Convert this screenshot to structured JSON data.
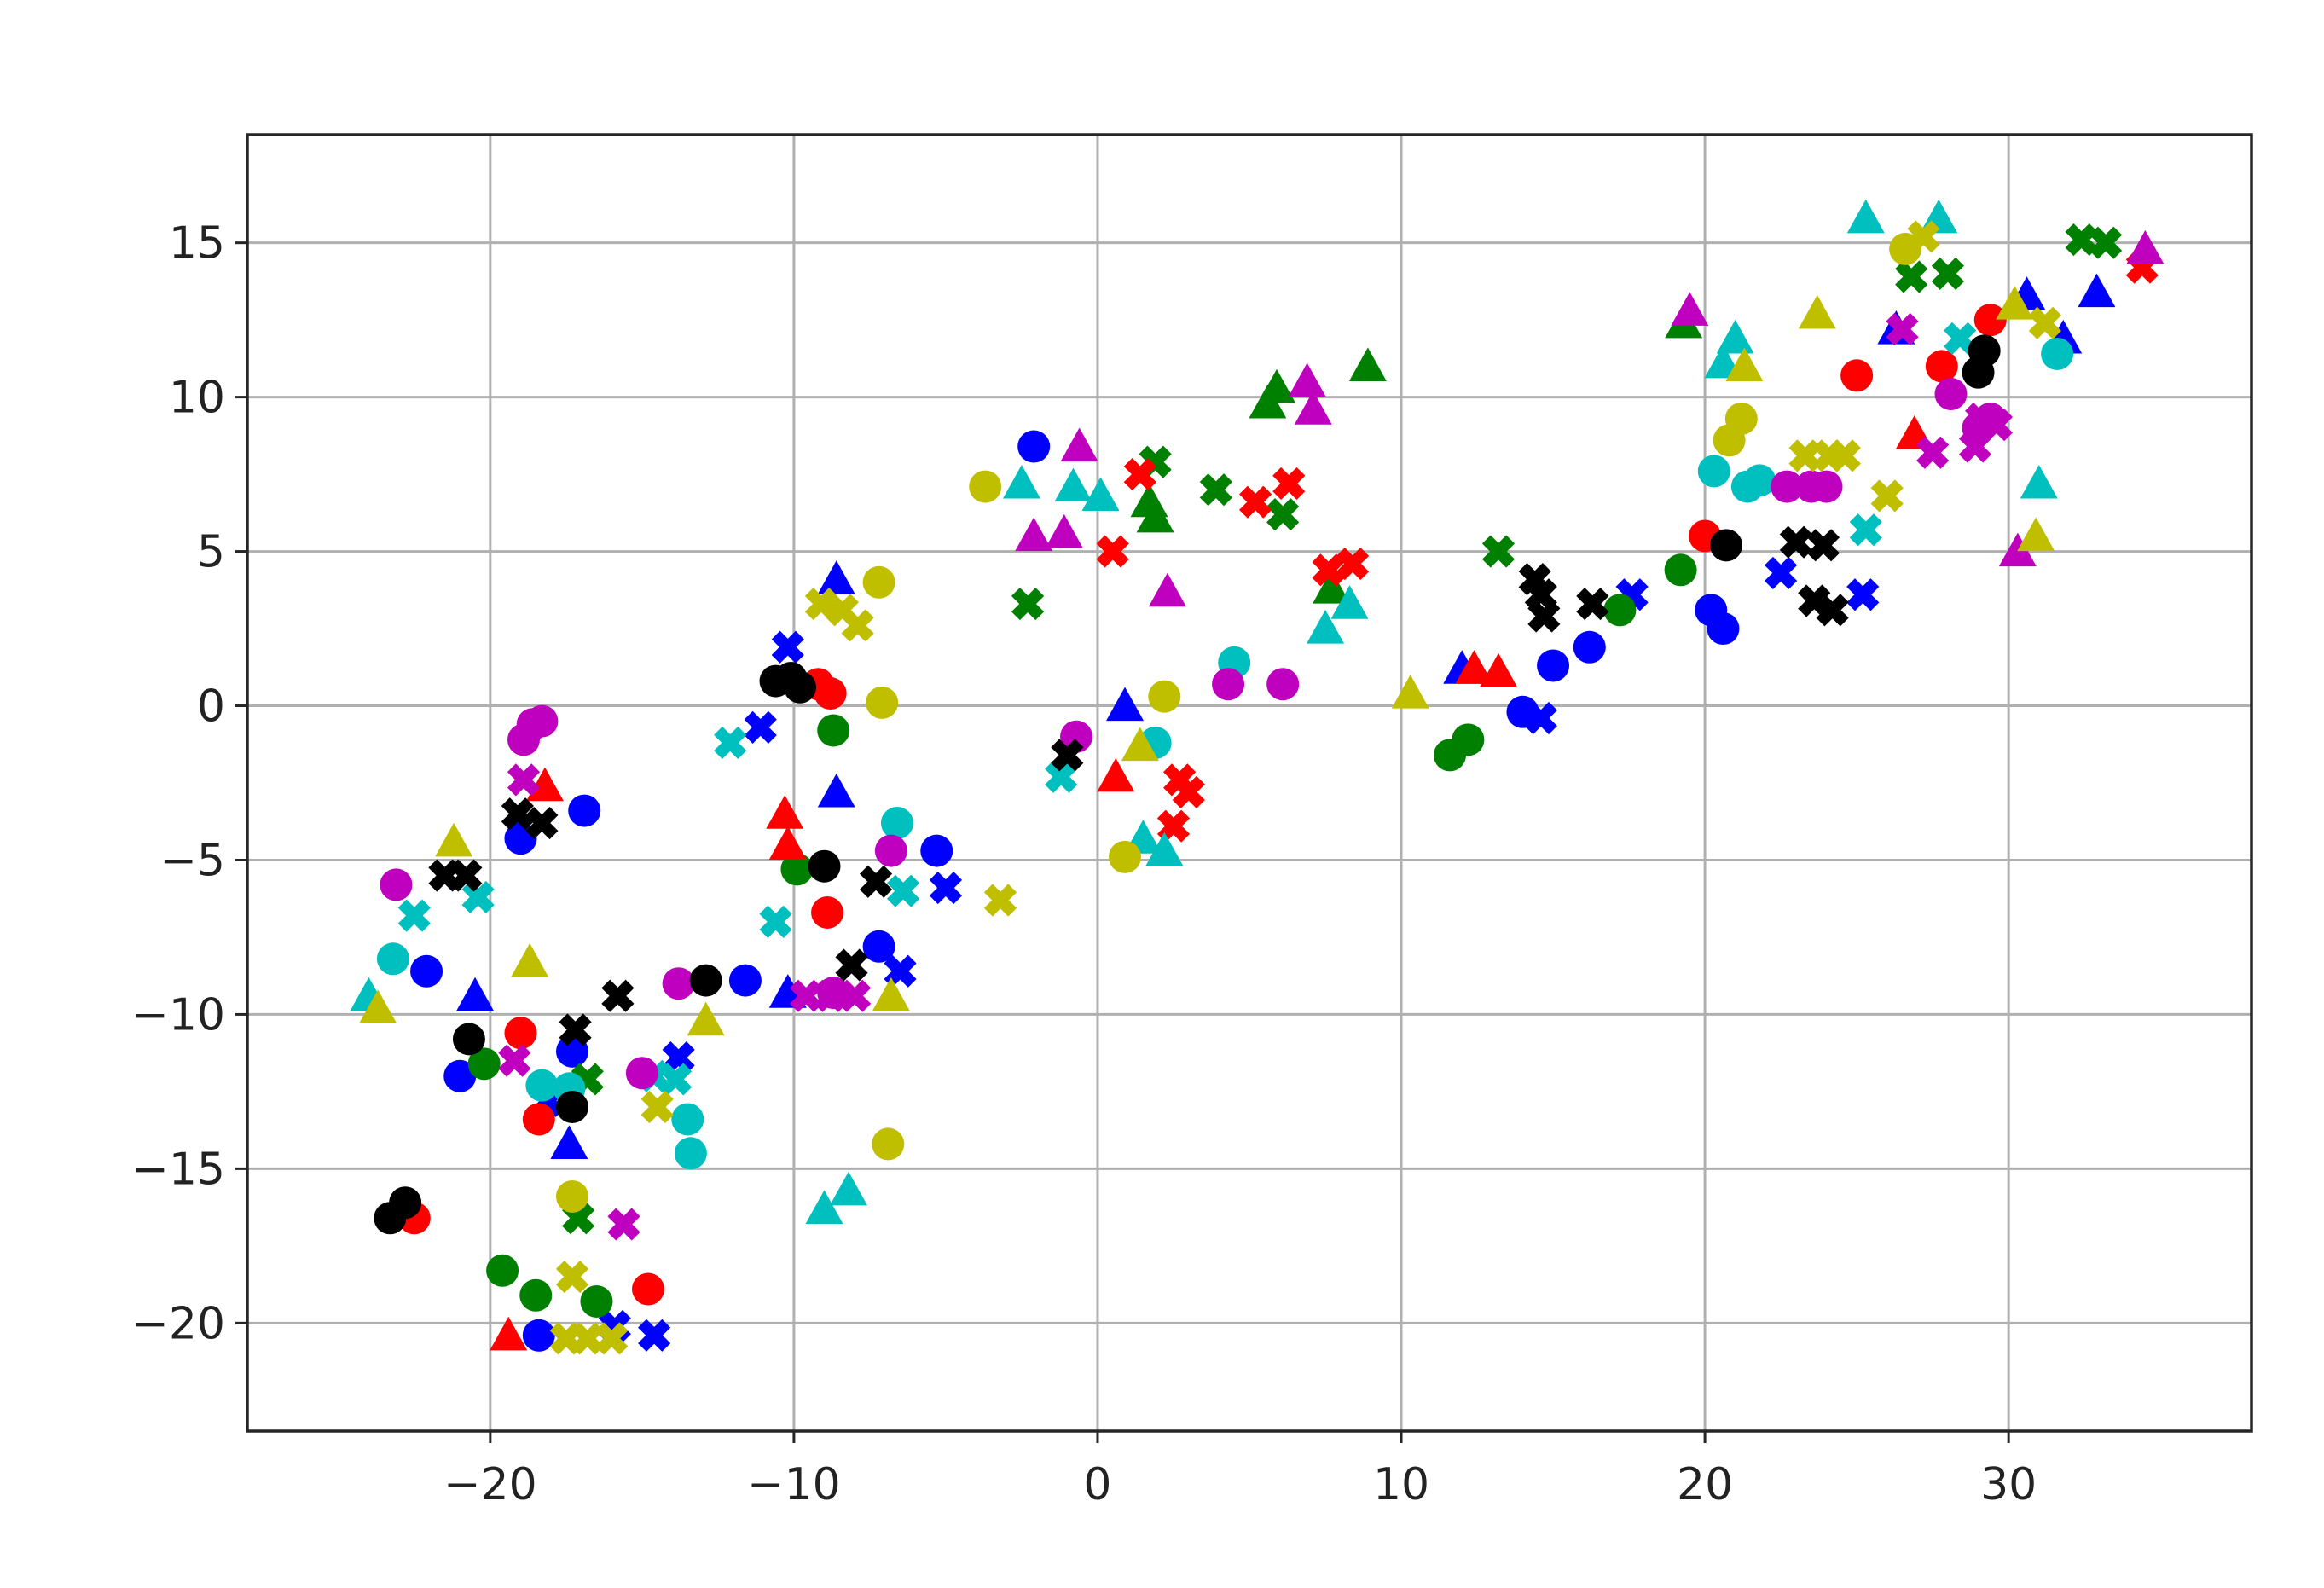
{
  "chart_data": {
    "type": "scatter",
    "title": "",
    "xlabel": "",
    "ylabel": "",
    "xlim": [
      -28,
      38
    ],
    "ylim": [
      -23.5,
      18.5
    ],
    "grid": true,
    "legend": "none",
    "xticks": [
      -20,
      -10,
      0,
      10,
      20,
      30
    ],
    "yticks": [
      15,
      10,
      5,
      0,
      -5,
      -10,
      -15,
      -20
    ],
    "xtick_labels": [
      "−20",
      "−10",
      "0",
      "10",
      "20",
      "30"
    ],
    "ytick_labels": [
      "15",
      "10",
      "5",
      "0",
      "−5",
      "−10",
      "−15",
      "−20"
    ],
    "colors": {
      "b": "#0000ff",
      "g": "#008000",
      "r": "#ff0000",
      "c": "#00bfbf",
      "m": "#bf00bf",
      "y": "#bfbf00",
      "k": "#000000",
      "grid": "#b0b0b0",
      "axes": "#262626"
    },
    "markers": {
      "circle": "o",
      "triangle": "^",
      "cross": "X"
    },
    "series": [
      {
        "color": "b",
        "circles": [
          [
            -2.1,
            8.4
          ],
          [
            -19,
            -4.3
          ],
          [
            -16.9,
            -3.4
          ],
          [
            -22.1,
            -8.6
          ],
          [
            -21,
            -12
          ],
          [
            -17.3,
            -11.2
          ],
          [
            -11.6,
            -8.9
          ],
          [
            -7.2,
            -7.8
          ],
          [
            -5.3,
            -4.7
          ],
          [
            14,
            -0.2
          ],
          [
            15,
            1.3
          ],
          [
            16.2,
            1.9
          ],
          [
            20.2,
            3.1
          ],
          [
            20.6,
            2.5
          ],
          [
            -18.4,
            -20.4
          ]
        ],
        "triangles": [
          [
            -8.6,
            4.1
          ],
          [
            -8.6,
            -2.8
          ],
          [
            -20.5,
            -9.4
          ],
          [
            -10.2,
            -9.3
          ],
          [
            -17.4,
            -14.2
          ],
          [
            0.9,
            0
          ],
          [
            12,
            1.2
          ],
          [
            26.3,
            12.2
          ],
          [
            30.6,
            13.3
          ],
          [
            32.9,
            13.4
          ],
          [
            31.8,
            11.9
          ]
        ],
        "crosses": [
          [
            -10.2,
            1.9
          ],
          [
            -11.1,
            -0.7
          ],
          [
            -18.1,
            -12.8
          ],
          [
            -13.8,
            -11.4
          ],
          [
            -6.5,
            -8.6
          ],
          [
            -5,
            -5.9
          ],
          [
            -15.9,
            -20.1
          ],
          [
            -14.6,
            -20.4
          ],
          [
            14.6,
            -0.4
          ],
          [
            17.6,
            3.6
          ],
          [
            22.5,
            4.3
          ],
          [
            25.2,
            3.6
          ]
        ]
      },
      {
        "color": "g",
        "circles": [
          [
            -8.7,
            -0.8
          ],
          [
            -9.9,
            -5.3
          ],
          [
            -20.2,
            -11.6
          ],
          [
            -19.6,
            -18.3
          ],
          [
            -18.5,
            -19.1
          ],
          [
            -16.5,
            -19.3
          ],
          [
            11.6,
            -1.6
          ],
          [
            12.2,
            -1.1
          ],
          [
            19.2,
            4.4
          ],
          [
            17.2,
            3.1
          ]
        ],
        "triangles": [
          [
            5.9,
            10.3
          ],
          [
            5.6,
            9.8
          ],
          [
            8.9,
            11
          ],
          [
            1.9,
            6.1
          ],
          [
            1.7,
            6.6
          ],
          [
            7.7,
            3.8
          ],
          [
            19.3,
            12.4
          ]
        ],
        "crosses": [
          [
            -17.1,
            -16.6
          ],
          [
            -16.8,
            -12.1
          ],
          [
            -2.3,
            3.3
          ],
          [
            1.9,
            7.9
          ],
          [
            3.9,
            7
          ],
          [
            6.1,
            6.2
          ],
          [
            13.2,
            5
          ],
          [
            26.8,
            13.9
          ],
          [
            28,
            14
          ],
          [
            32.4,
            15.1
          ],
          [
            33.2,
            15
          ]
        ]
      },
      {
        "color": "r",
        "circles": [
          [
            -9.2,
            0.7
          ],
          [
            -8.8,
            0.4
          ],
          [
            -8.9,
            -6.7
          ],
          [
            -19,
            -10.6
          ],
          [
            -18.4,
            -13.4
          ],
          [
            -22.5,
            -16.6
          ],
          [
            -14.8,
            -18.9
          ],
          [
            20,
            5.5
          ],
          [
            25,
            10.7
          ],
          [
            27.8,
            11
          ],
          [
            29.4,
            12.5
          ]
        ],
        "triangles": [
          [
            -10.3,
            -3.5
          ],
          [
            -10.2,
            -4.5
          ],
          [
            -18.2,
            -2.6
          ],
          [
            0.6,
            -2.3
          ],
          [
            12.4,
            1.2
          ],
          [
            13.2,
            1.1
          ],
          [
            26.9,
            8.8
          ],
          [
            -19.4,
            -20.4
          ]
        ],
        "crosses": [
          [
            0.5,
            5
          ],
          [
            1.4,
            7.5
          ],
          [
            5.2,
            6.6
          ],
          [
            6.3,
            7.2
          ],
          [
            7.6,
            4.4
          ],
          [
            8.4,
            4.6
          ],
          [
            2.7,
            -2.4
          ],
          [
            3,
            -2.8
          ],
          [
            2.5,
            -3.9
          ],
          [
            34.4,
            14.2
          ]
        ]
      },
      {
        "color": "c",
        "circles": [
          [
            -23.2,
            -8.2
          ],
          [
            -13.5,
            -13.4
          ],
          [
            -13.4,
            -14.5
          ],
          [
            -17.4,
            -12.4
          ],
          [
            -18.3,
            -12.3
          ],
          [
            -6.6,
            -3.8
          ],
          [
            1.9,
            -1.2
          ],
          [
            4.5,
            1.4
          ],
          [
            20.3,
            7.6
          ],
          [
            21.4,
            7.1
          ],
          [
            21.8,
            7.3
          ],
          [
            31.6,
            11.4
          ]
        ],
        "triangles": [
          [
            -24,
            -9.4
          ],
          [
            -9,
            -16.3
          ],
          [
            -8.2,
            -15.7
          ],
          [
            -2.5,
            7.2
          ],
          [
            -0.8,
            7.1
          ],
          [
            0.1,
            6.8
          ],
          [
            1.5,
            -4.3
          ],
          [
            2.2,
            -4.7
          ],
          [
            7.5,
            2.5
          ],
          [
            8.3,
            3.3
          ],
          [
            20.6,
            11.1
          ],
          [
            21,
            11.9
          ],
          [
            25.3,
            15.8
          ],
          [
            27.7,
            15.8
          ],
          [
            31,
            7.2
          ]
        ],
        "crosses": [
          [
            -22.5,
            -6.8
          ],
          [
            -20.4,
            -6.2
          ],
          [
            -14.6,
            -12
          ],
          [
            -13.9,
            -12.1
          ],
          [
            -12.1,
            -1.2
          ],
          [
            -10.6,
            -7
          ],
          [
            -6.4,
            -6
          ],
          [
            -1.2,
            -2.3
          ],
          [
            25.3,
            5.7
          ],
          [
            28.4,
            11.9
          ]
        ]
      },
      {
        "color": "m",
        "circles": [
          [
            -18.6,
            -0.6
          ],
          [
            -18.3,
            -0.5
          ],
          [
            -18.9,
            -1.1
          ],
          [
            -23.1,
            -5.8
          ],
          [
            -6.8,
            -4.7
          ],
          [
            -13.8,
            -9
          ],
          [
            -8.7,
            -9.3
          ],
          [
            -15,
            -11.9
          ],
          [
            -0.7,
            -1
          ],
          [
            4.3,
            0.7
          ],
          [
            6.1,
            0.7
          ],
          [
            22.7,
            7.1
          ],
          [
            23.5,
            7.1
          ],
          [
            24,
            7.1
          ],
          [
            28.1,
            10.1
          ],
          [
            29,
            9
          ],
          [
            29.4,
            9.3
          ]
        ],
        "triangles": [
          [
            -2.1,
            5.5
          ],
          [
            -1.1,
            5.6
          ],
          [
            -0.6,
            8.4
          ],
          [
            2.3,
            3.7
          ],
          [
            6.9,
            10.5
          ],
          [
            7.1,
            9.6
          ],
          [
            19.5,
            12.8
          ],
          [
            30.3,
            5
          ],
          [
            34.5,
            14.8
          ]
        ],
        "crosses": [
          [
            -18.9,
            -2.4
          ],
          [
            -19.2,
            -11.5
          ],
          [
            -15.6,
            -16.8
          ],
          [
            -9.6,
            -9.4
          ],
          [
            -8.8,
            -9.4
          ],
          [
            -8,
            -9.4
          ],
          [
            26.5,
            12.2
          ],
          [
            27.5,
            8.2
          ],
          [
            28.9,
            8.4
          ],
          [
            29.1,
            9.3
          ],
          [
            29.6,
            9.1
          ]
        ]
      },
      {
        "color": "y",
        "circles": [
          [
            -3.7,
            7.1
          ],
          [
            -7.2,
            4
          ],
          [
            -7.1,
            0.1
          ],
          [
            -6.9,
            -14.2
          ],
          [
            -17.3,
            -15.9
          ],
          [
            2.2,
            0.3
          ],
          [
            0.9,
            -4.9
          ],
          [
            20.8,
            8.6
          ],
          [
            21.2,
            9.3
          ],
          [
            26.6,
            14.8
          ]
        ],
        "triangles": [
          [
            -21.2,
            -4.4
          ],
          [
            -18.7,
            -8.3
          ],
          [
            -12.9,
            -10.2
          ],
          [
            -6.8,
            -9.4
          ],
          [
            -23.7,
            -9.8
          ],
          [
            1.4,
            -1.3
          ],
          [
            10.3,
            0.4
          ],
          [
            21.3,
            11
          ],
          [
            23.7,
            12.7
          ],
          [
            30.9,
            5.5
          ],
          [
            30.2,
            13
          ]
        ],
        "crosses": [
          [
            -9.1,
            3.3
          ],
          [
            -8.4,
            3.1
          ],
          [
            -7.9,
            2.6
          ],
          [
            -14.5,
            -13
          ],
          [
            -3.2,
            -6.3
          ],
          [
            -17.3,
            -18.5
          ],
          [
            -17.5,
            -20.5
          ],
          [
            -16.8,
            -20.5
          ],
          [
            -16,
            -20.5
          ],
          [
            23.3,
            8.1
          ],
          [
            24.1,
            8.1
          ],
          [
            24.6,
            8.1
          ],
          [
            26,
            6.8
          ],
          [
            27.2,
            15.2
          ],
          [
            31.2,
            12.4
          ]
        ]
      },
      {
        "color": "k",
        "circles": [
          [
            -10.6,
            0.8
          ],
          [
            -10.1,
            0.9
          ],
          [
            -9.8,
            0.6
          ],
          [
            -9,
            -5.2
          ],
          [
            -20.7,
            -10.8
          ],
          [
            -17.3,
            -13
          ],
          [
            -12.9,
            -8.9
          ],
          [
            -22.8,
            -16.1
          ],
          [
            -23.3,
            -16.6
          ],
          [
            20.7,
            5.2
          ],
          [
            29,
            10.8
          ],
          [
            29.2,
            11.5
          ]
        ],
        "triangles": [],
        "crosses": [
          [
            -19.1,
            -3.5
          ],
          [
            -18.3,
            -3.8
          ],
          [
            -21.5,
            -5.5
          ],
          [
            -20.8,
            -5.5
          ],
          [
            -17.2,
            -10.5
          ],
          [
            -15.8,
            -9.4
          ],
          [
            -7.3,
            -5.7
          ],
          [
            -8.1,
            -8.4
          ],
          [
            -1,
            -1.6
          ],
          [
            14.4,
            4.1
          ],
          [
            14.6,
            3.6
          ],
          [
            14.7,
            2.9
          ],
          [
            16.3,
            3.3
          ],
          [
            23,
            5.3
          ],
          [
            23.9,
            5.2
          ],
          [
            23.6,
            3.4
          ],
          [
            24.2,
            3.1
          ]
        ]
      }
    ]
  }
}
